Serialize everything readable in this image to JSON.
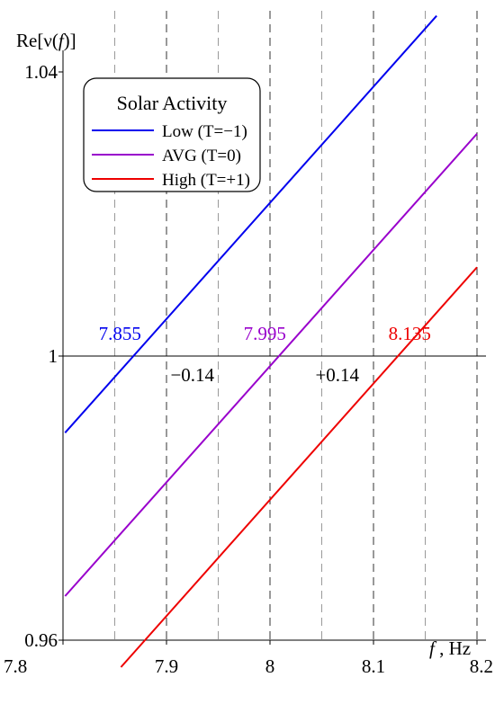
{
  "chart_data": {
    "type": "line",
    "ylabel_parts": [
      "Re[ν(",
      "f",
      ")]"
    ],
    "xlabel_parts": [
      "f",
      " , Hz"
    ],
    "xlim": [
      7.8,
      8.2
    ],
    "ylim": [
      0.96,
      1.04
    ],
    "x_ticks": [
      "7.8",
      "7.9",
      "8",
      "8.1",
      "8.2"
    ],
    "x_tick_values": [
      7.8,
      7.9,
      8.0,
      8.1,
      8.2
    ],
    "y_ticks": [
      "0.96",
      "1",
      "1.04"
    ],
    "y_tick_values": [
      0.96,
      1.0,
      1.04
    ],
    "grid": {
      "dashed_x_values": [
        7.85,
        7.9,
        7.95,
        8.0,
        8.05,
        8.1,
        8.15,
        8.2
      ],
      "dark_x_values": [
        7.9,
        8.0,
        8.1,
        8.2
      ]
    },
    "legend": {
      "title": "Solar Activity",
      "position": "top-left"
    },
    "series": [
      {
        "name": "Low (T=−1)",
        "color": "#0000ee",
        "x": [
          7.802,
          8.161
        ],
        "y": [
          0.9892,
          1.0479
        ]
      },
      {
        "name": "AVG (T=0)",
        "color": "#9900cc",
        "x": [
          7.802,
          8.2
        ],
        "y": [
          0.9662,
          1.0313
        ]
      },
      {
        "name": "High (T=+1)",
        "color": "#ee0000",
        "x": [
          7.856,
          8.2
        ],
        "y": [
          0.9562,
          1.0125
        ]
      }
    ],
    "annotations": [
      {
        "text": "7.855",
        "color": "#0000ee",
        "x": 7.855,
        "y": 1.0
      },
      {
        "text": "7.995",
        "color": "#9900cc",
        "x": 7.995,
        "y": 1.0
      },
      {
        "text": "8.135",
        "color": "#ee0000",
        "x": 8.135,
        "y": 1.0
      },
      {
        "text": "−0.14",
        "color": "#000000",
        "x": 7.925,
        "y": 1.0
      },
      {
        "text": "+0.14",
        "color": "#000000",
        "x": 8.065,
        "y": 1.0
      }
    ]
  }
}
